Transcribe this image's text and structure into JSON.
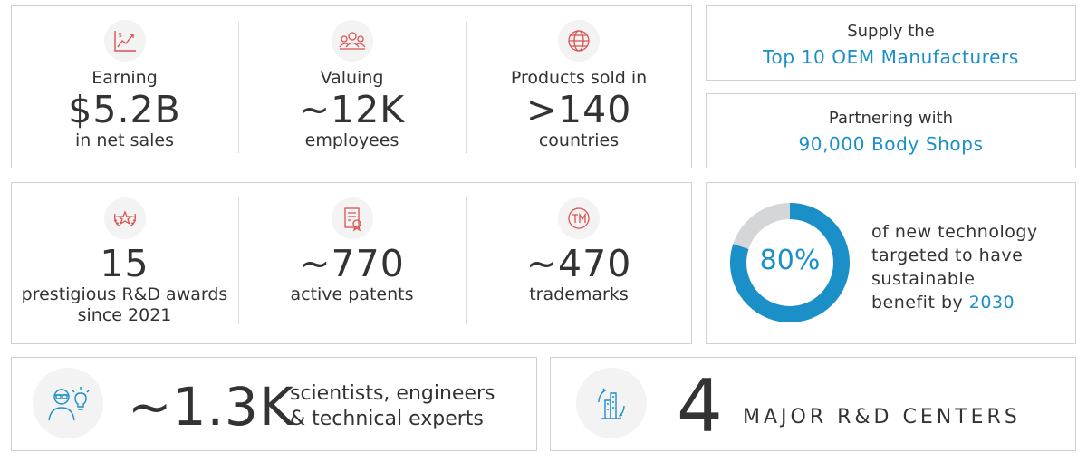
{
  "stats_top": [
    {
      "icon": "revenue-chart-icon",
      "label_top": "Earning",
      "value": "$5.2B",
      "label_bottom": "in net sales"
    },
    {
      "icon": "employees-group-icon",
      "label_top": "Valuing",
      "value": "~12K",
      "label_bottom": "employees"
    },
    {
      "icon": "globe-icon",
      "label_top": "Products sold in",
      "value": ">140",
      "label_bottom": "countries"
    }
  ],
  "stats_middle": [
    {
      "icon": "award-laurel-icon",
      "value": "15",
      "label_bottom": "prestigious R&D awards",
      "label_bottom2": "since 2021"
    },
    {
      "icon": "patent-certificate-icon",
      "value": "~770",
      "label_bottom": "active patents"
    },
    {
      "icon": "trademark-icon",
      "value": "~470",
      "label_bottom": "trademarks"
    }
  ],
  "supply": {
    "title": "Supply the",
    "highlight": "Top 10 OEM Manufacturers"
  },
  "partner": {
    "title": "Partnering with",
    "highlight": "90,000 Body Shops"
  },
  "sustainability": {
    "percent_label": "80%",
    "percent_value": 80,
    "line1": "of new technology",
    "line2": "targeted to have",
    "line3": "sustainable",
    "line4": "benefit by",
    "year": "2030"
  },
  "scientists": {
    "icon": "scientist-lightbulb-icon",
    "value": "~1.3K",
    "line1": "scientists, engineers",
    "line2": "& technical experts"
  },
  "centers": {
    "icon": "rd-center-building-icon",
    "value": "4",
    "label": "MAJOR R&D CENTERS"
  },
  "colors": {
    "accent_red": "#d9534f",
    "accent_blue": "#1a8fc8",
    "ring_gray": "#d4d6d8"
  }
}
